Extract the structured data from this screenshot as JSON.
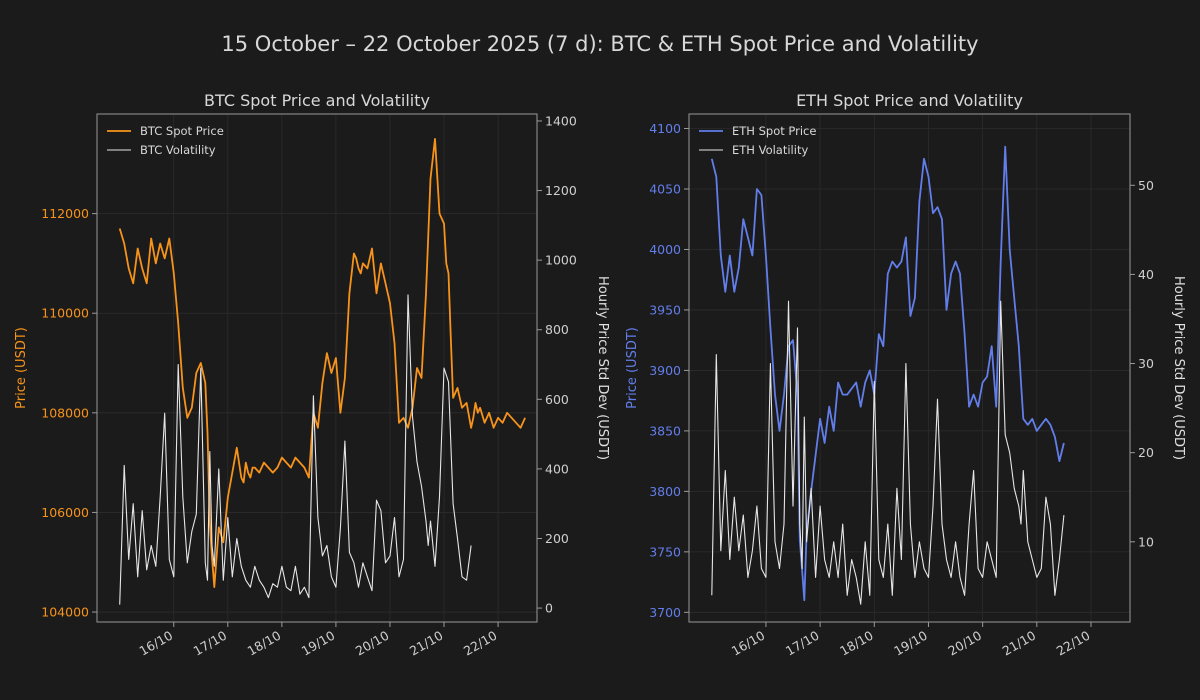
{
  "figure_title": "15 October – 22 October 2025 (7 d): BTC & ETH Spot Price and Volatility",
  "colors": {
    "background": "#1b1b1b",
    "btc": "#f7931a",
    "eth": "#627eea",
    "volatility": "#e6e6e6",
    "spine": "#9a9a9a",
    "grid": "#2c2c2c"
  },
  "chart_data": [
    {
      "type": "line",
      "title": "BTC Spot Price and Volatility",
      "xlabel": "",
      "ylabel": "Price (USDT)",
      "y2label": "Hourly Price Std Dev (USDT)",
      "x_tick_labels": [
        "16/10",
        "17/10",
        "18/10",
        "19/10",
        "20/10",
        "21/10",
        "22/10"
      ],
      "x_range_days": [
        14.58,
        22.72
      ],
      "ylim": [
        103800,
        114000
      ],
      "y_ticks": [
        104000,
        106000,
        108000,
        110000,
        112000
      ],
      "y2lim": [
        -40,
        1420
      ],
      "y2_ticks": [
        0,
        200,
        400,
        600,
        800,
        1000,
        1200,
        1400
      ],
      "grid": true,
      "legend": "top-left",
      "series": [
        {
          "name": "BTC Spot Price",
          "axis": "left",
          "x": [
            15.0,
            15.083,
            15.167,
            15.25,
            15.333,
            15.417,
            15.5,
            15.583,
            15.667,
            15.75,
            15.833,
            15.917,
            16.0,
            16.083,
            16.167,
            16.25,
            16.333,
            16.417,
            16.5,
            16.583,
            16.625,
            16.667,
            16.708,
            16.75,
            16.833,
            16.917,
            17.0,
            17.083,
            17.167,
            17.25,
            17.292,
            17.333,
            17.375,
            17.417,
            17.458,
            17.5,
            17.583,
            17.667,
            17.75,
            17.833,
            17.917,
            18.0,
            18.083,
            18.167,
            18.25,
            18.333,
            18.417,
            18.5,
            18.583,
            18.667,
            18.75,
            18.833,
            18.917,
            19.0,
            19.083,
            19.167,
            19.25,
            19.333,
            19.375,
            19.417,
            19.458,
            19.5,
            19.583,
            19.667,
            19.75,
            19.833,
            19.917,
            20.0,
            20.083,
            20.167,
            20.25,
            20.333,
            20.417,
            20.5,
            20.583,
            20.667,
            20.75,
            20.833,
            20.917,
            21.0,
            21.042,
            21.083,
            21.125,
            21.167,
            21.25,
            21.333,
            21.417,
            21.5,
            21.542,
            21.583,
            21.625,
            21.667,
            21.75,
            21.833,
            21.917,
            22.0,
            22.083,
            22.167,
            22.25,
            22.333,
            22.417,
            22.5
          ],
          "values": [
            111700,
            111400,
            110900,
            110600,
            111300,
            110900,
            110600,
            111500,
            111000,
            111400,
            111100,
            111500,
            110800,
            109800,
            108500,
            107900,
            108100,
            108800,
            109000,
            108600,
            107600,
            105800,
            105100,
            104500,
            105700,
            105400,
            106300,
            106800,
            107300,
            106700,
            106600,
            107000,
            106800,
            106700,
            106900,
            106900,
            106800,
            107000,
            106900,
            106800,
            106900,
            107100,
            107000,
            106900,
            107100,
            107000,
            106900,
            106700,
            108000,
            107700,
            108600,
            109200,
            108800,
            109100,
            108000,
            108700,
            110400,
            111200,
            111100,
            110900,
            110800,
            111000,
            110900,
            111300,
            110400,
            111000,
            110600,
            110200,
            109400,
            107800,
            107900,
            107700,
            108100,
            108900,
            108700,
            110400,
            112700,
            113500,
            112000,
            111800,
            111000,
            110800,
            109500,
            108300,
            108500,
            108100,
            108200,
            107700,
            107900,
            108200,
            108000,
            108100,
            107800,
            108000,
            107700,
            107900,
            107800,
            108000,
            107900,
            107800,
            107700,
            107900
          ]
        },
        {
          "name": "BTC Volatility",
          "axis": "right",
          "x": [
            15.0,
            15.083,
            15.167,
            15.25,
            15.333,
            15.417,
            15.5,
            15.583,
            15.667,
            15.75,
            15.833,
            15.917,
            16.0,
            16.083,
            16.167,
            16.25,
            16.333,
            16.417,
            16.5,
            16.583,
            16.625,
            16.667,
            16.708,
            16.75,
            16.833,
            16.917,
            17.0,
            17.083,
            17.167,
            17.25,
            17.333,
            17.417,
            17.5,
            17.583,
            17.667,
            17.75,
            17.833,
            17.917,
            18.0,
            18.083,
            18.167,
            18.25,
            18.333,
            18.417,
            18.5,
            18.583,
            18.667,
            18.75,
            18.833,
            18.917,
            19.0,
            19.083,
            19.167,
            19.25,
            19.333,
            19.417,
            19.5,
            19.583,
            19.667,
            19.75,
            19.833,
            19.917,
            20.0,
            20.083,
            20.167,
            20.25,
            20.333,
            20.417,
            20.5,
            20.583,
            20.667,
            20.708,
            20.75,
            20.833,
            20.917,
            21.0,
            21.083,
            21.167,
            21.25,
            21.333,
            21.417,
            21.5
          ],
          "values": [
            10,
            410,
            140,
            300,
            90,
            280,
            110,
            180,
            120,
            320,
            560,
            140,
            90,
            700,
            320,
            130,
            220,
            270,
            690,
            130,
            80,
            450,
            180,
            120,
            400,
            80,
            260,
            90,
            200,
            120,
            80,
            60,
            120,
            80,
            60,
            30,
            70,
            60,
            120,
            60,
            50,
            120,
            40,
            60,
            30,
            610,
            260,
            150,
            180,
            90,
            60,
            230,
            480,
            160,
            130,
            60,
            130,
            90,
            50,
            310,
            280,
            130,
            150,
            260,
            90,
            140,
            900,
            550,
            420,
            350,
            250,
            180,
            250,
            120,
            320,
            690,
            650,
            300,
            200,
            90,
            80,
            180
          ]
        }
      ]
    },
    {
      "type": "line",
      "title": "ETH Spot Price and Volatility",
      "xlabel": "",
      "ylabel": "Price (USDT)",
      "y2label": "Hourly Price Std Dev (USDT)",
      "x_tick_labels": [
        "16/10",
        "17/10",
        "18/10",
        "19/10",
        "20/10",
        "21/10",
        "22/10"
      ],
      "x_range_days": [
        14.58,
        22.72
      ],
      "ylim": [
        3692,
        4112
      ],
      "y_ticks": [
        3700,
        3750,
        3800,
        3850,
        3900,
        3950,
        4000,
        4050,
        4100
      ],
      "y2lim": [
        1.0,
        58.0
      ],
      "y2_ticks": [
        10,
        20,
        30,
        40,
        50
      ],
      "grid": true,
      "legend": "top-left",
      "series": [
        {
          "name": "ETH Spot Price",
          "axis": "left",
          "x": [
            15.0,
            15.083,
            15.167,
            15.25,
            15.333,
            15.417,
            15.5,
            15.583,
            15.667,
            15.75,
            15.833,
            15.917,
            16.0,
            16.083,
            16.167,
            16.25,
            16.333,
            16.417,
            16.5,
            16.583,
            16.625,
            16.667,
            16.708,
            16.75,
            16.833,
            16.917,
            17.0,
            17.083,
            17.167,
            17.25,
            17.333,
            17.417,
            17.5,
            17.583,
            17.667,
            17.75,
            17.833,
            17.917,
            18.0,
            18.083,
            18.167,
            18.25,
            18.333,
            18.417,
            18.5,
            18.583,
            18.667,
            18.75,
            18.833,
            18.917,
            19.0,
            19.083,
            19.167,
            19.25,
            19.333,
            19.417,
            19.5,
            19.583,
            19.667,
            19.75,
            19.833,
            19.917,
            20.0,
            20.083,
            20.167,
            20.25,
            20.333,
            20.417,
            20.5,
            20.583,
            20.667,
            20.708,
            20.75,
            20.833,
            20.917,
            21.0,
            21.083,
            21.167,
            21.25,
            21.333,
            21.417,
            21.5
          ],
          "values": [
            4075,
            4060,
            3995,
            3965,
            3995,
            3965,
            3985,
            4025,
            4010,
            3995,
            4050,
            4045,
            3995,
            3935,
            3880,
            3850,
            3880,
            3920,
            3925,
            3880,
            3760,
            3735,
            3710,
            3765,
            3800,
            3830,
            3860,
            3840,
            3870,
            3850,
            3890,
            3880,
            3880,
            3885,
            3890,
            3870,
            3890,
            3900,
            3880,
            3930,
            3920,
            3980,
            3990,
            3985,
            3990,
            4010,
            3945,
            3960,
            4040,
            4075,
            4060,
            4030,
            4035,
            4025,
            3950,
            3980,
            3990,
            3980,
            3930,
            3870,
            3880,
            3870,
            3890,
            3895,
            3920,
            3870,
            3990,
            4085,
            4000,
            3960,
            3920,
            3890,
            3860,
            3855,
            3860,
            3850,
            3855,
            3860,
            3855,
            3845,
            3825,
            3840
          ]
        },
        {
          "name": "ETH Volatility",
          "axis": "right",
          "x": [
            15.0,
            15.083,
            15.167,
            15.25,
            15.333,
            15.417,
            15.5,
            15.583,
            15.667,
            15.75,
            15.833,
            15.917,
            16.0,
            16.083,
            16.167,
            16.25,
            16.333,
            16.417,
            16.5,
            16.583,
            16.625,
            16.667,
            16.708,
            16.75,
            16.833,
            16.917,
            17.0,
            17.083,
            17.167,
            17.25,
            17.333,
            17.417,
            17.5,
            17.583,
            17.667,
            17.75,
            17.833,
            17.917,
            18.0,
            18.083,
            18.167,
            18.25,
            18.333,
            18.417,
            18.5,
            18.583,
            18.667,
            18.75,
            18.833,
            18.917,
            19.0,
            19.083,
            19.167,
            19.25,
            19.333,
            19.417,
            19.5,
            19.583,
            19.667,
            19.75,
            19.833,
            19.917,
            20.0,
            20.083,
            20.167,
            20.25,
            20.333,
            20.417,
            20.5,
            20.583,
            20.667,
            20.708,
            20.75,
            20.833,
            20.917,
            21.0,
            21.083,
            21.167,
            21.25,
            21.333,
            21.417,
            21.5
          ],
          "values": [
            4,
            31,
            9,
            18,
            8,
            15,
            9,
            13,
            6,
            9,
            14,
            7,
            6,
            30,
            10,
            7,
            12,
            37,
            14,
            34,
            12,
            7,
            24,
            10,
            16,
            6,
            14,
            8,
            6,
            10,
            6,
            12,
            4,
            8,
            6,
            3,
            10,
            4,
            28,
            8,
            6,
            12,
            4,
            16,
            8,
            30,
            12,
            6,
            10,
            7,
            6,
            14,
            26,
            12,
            8,
            6,
            10,
            6,
            4,
            12,
            18,
            7,
            6,
            10,
            8,
            6,
            37,
            22,
            20,
            16,
            14,
            12,
            18,
            10,
            8,
            6,
            7,
            15,
            12,
            4,
            8,
            13
          ]
        }
      ]
    }
  ]
}
